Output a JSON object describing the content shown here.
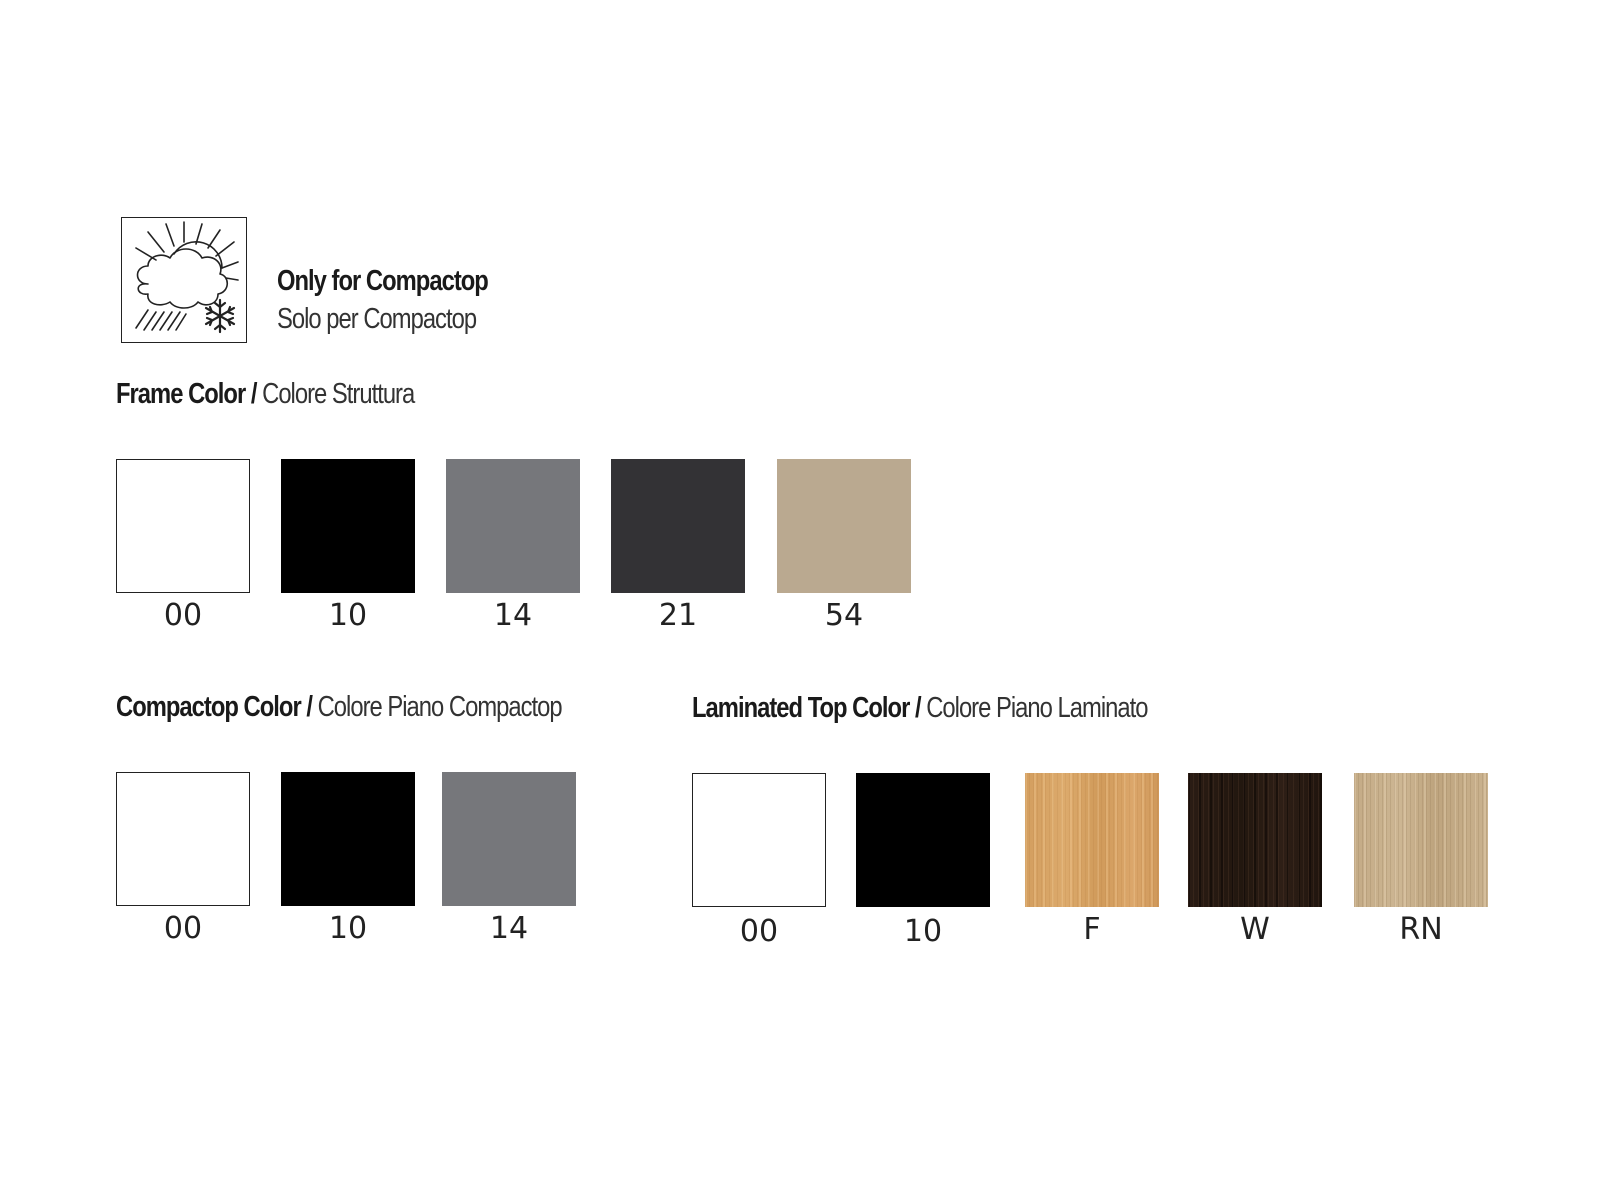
{
  "note": {
    "icon": "weather-sun-cloud-snow-icon",
    "line1": "Only for Compactop",
    "line2": "Solo per Compactop"
  },
  "frame": {
    "title_en": "Frame Color /",
    "title_it": "Colore Struttura",
    "swatches": [
      {
        "code": "00",
        "color": "#ffffff"
      },
      {
        "code": "10",
        "color": "#000000"
      },
      {
        "code": "14",
        "color": "#76777b"
      },
      {
        "code": "21",
        "color": "#333235"
      },
      {
        "code": "54",
        "color": "#baa990"
      }
    ]
  },
  "compactop": {
    "title_en": "Compactop Color /",
    "title_it": "Colore Piano Compactop",
    "swatches": [
      {
        "code": "00",
        "color": "#ffffff"
      },
      {
        "code": "10",
        "color": "#000000"
      },
      {
        "code": "14",
        "color": "#76777b"
      }
    ]
  },
  "laminated": {
    "title_en": "Laminated Top Color /",
    "title_it": "Colore Piano Laminato",
    "swatches": [
      {
        "code": "00",
        "color": "#ffffff"
      },
      {
        "code": "10",
        "color": "#000000"
      },
      {
        "code": "F",
        "color": "#d4a063"
      },
      {
        "code": "W",
        "color": "#26190f"
      },
      {
        "code": "RN",
        "color": "#c6ae8a"
      }
    ]
  }
}
